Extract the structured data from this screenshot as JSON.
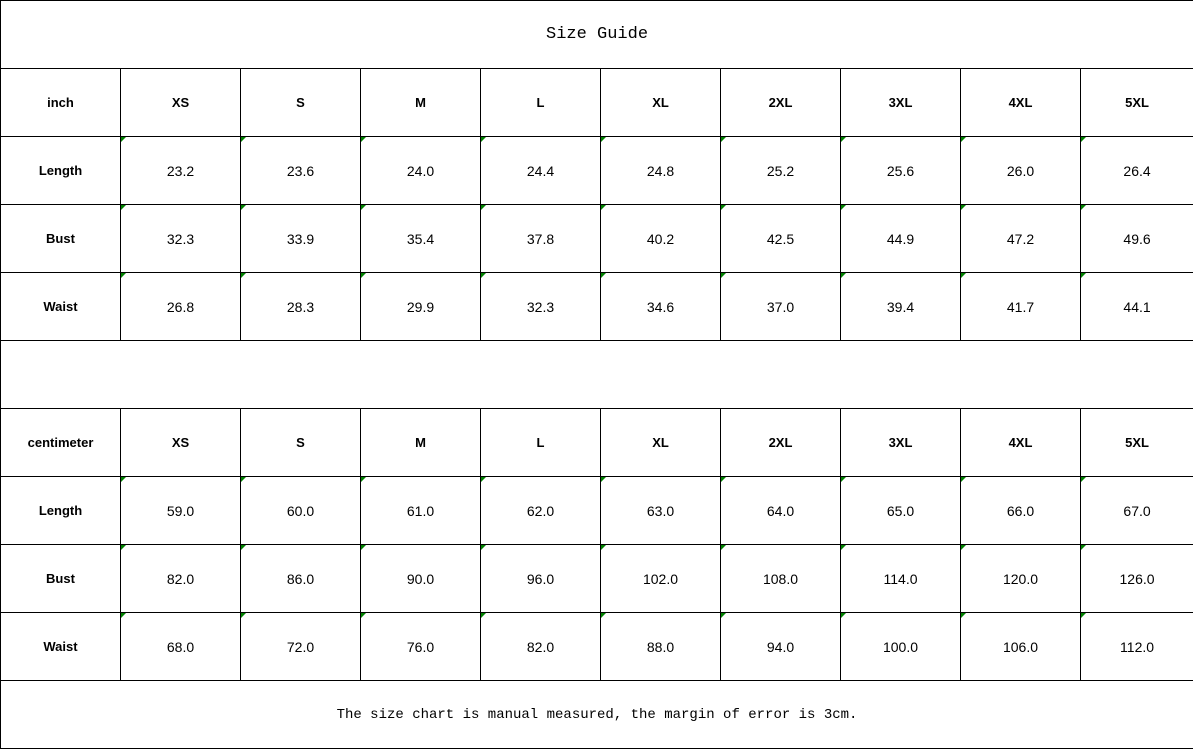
{
  "title": "Size Guide",
  "note": "The size chart is manual measured, the margin of error is 3cm.",
  "indicator_color": "#008000",
  "tables": [
    {
      "unit": "inch",
      "sizes": [
        "XS",
        "S",
        "M",
        "L",
        "XL",
        "2XL",
        "3XL",
        "4XL",
        "5XL"
      ],
      "rows": [
        {
          "label": "Length",
          "values": [
            "23.2",
            "23.6",
            "24.0",
            "24.4",
            "24.8",
            "25.2",
            "25.6",
            "26.0",
            "26.4"
          ]
        },
        {
          "label": "Bust",
          "values": [
            "32.3",
            "33.9",
            "35.4",
            "37.8",
            "40.2",
            "42.5",
            "44.9",
            "47.2",
            "49.6"
          ]
        },
        {
          "label": "Waist",
          "values": [
            "26.8",
            "28.3",
            "29.9",
            "32.3",
            "34.6",
            "37.0",
            "39.4",
            "41.7",
            "44.1"
          ]
        }
      ]
    },
    {
      "unit": "centimeter",
      "sizes": [
        "XS",
        "S",
        "M",
        "L",
        "XL",
        "2XL",
        "3XL",
        "4XL",
        "5XL"
      ],
      "rows": [
        {
          "label": "Length",
          "values": [
            "59.0",
            "60.0",
            "61.0",
            "62.0",
            "63.0",
            "64.0",
            "65.0",
            "66.0",
            "67.0"
          ]
        },
        {
          "label": "Bust",
          "values": [
            "82.0",
            "86.0",
            "90.0",
            "96.0",
            "102.0",
            "108.0",
            "114.0",
            "120.0",
            "126.0"
          ]
        },
        {
          "label": "Waist",
          "values": [
            "68.0",
            "72.0",
            "76.0",
            "82.0",
            "88.0",
            "94.0",
            "100.0",
            "106.0",
            "112.0"
          ]
        }
      ]
    }
  ]
}
